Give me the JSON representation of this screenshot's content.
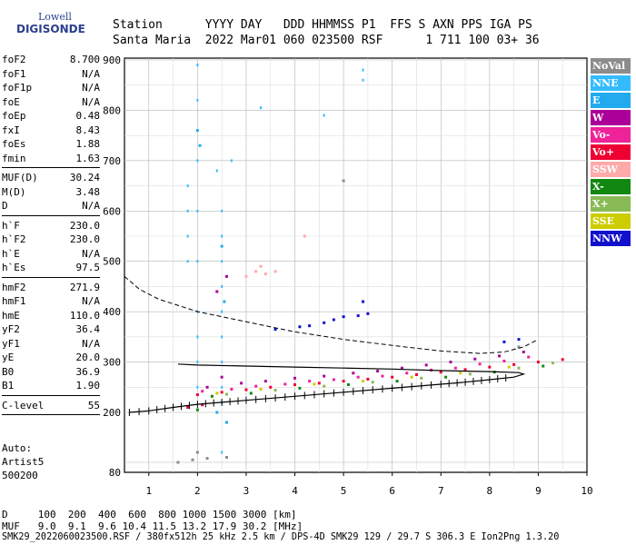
{
  "logo": {
    "line1": "Lowell",
    "line2": "DIGISONDE"
  },
  "header": {
    "line1": "Station      YYYY DAY   DDD HHMMSS P1  FFS S AXN PPS IGA PS",
    "line2": "Santa Maria  2022 Mar01 060 023500 RSF      1 711 100 03+ 36"
  },
  "params": [
    {
      "label": "foF2",
      "value": "8.700"
    },
    {
      "label": "foF1",
      "value": "N/A"
    },
    {
      "label": "foF1p",
      "value": "N/A"
    },
    {
      "label": "foE",
      "value": "N/A"
    },
    {
      "label": "foEp",
      "value": "0.48"
    },
    {
      "label": "fxI",
      "value": "8.43"
    },
    {
      "label": "foEs",
      "value": "1.88"
    },
    {
      "label": "fmin",
      "value": "1.63"
    },
    {
      "sep": true
    },
    {
      "label": "MUF(D)",
      "value": "30.24"
    },
    {
      "label": "M(D)",
      "value": "3.48"
    },
    {
      "label": "D",
      "value": "N/A"
    },
    {
      "sep": true
    },
    {
      "label": "h`F",
      "value": "230.0"
    },
    {
      "label": "h`F2",
      "value": "230.0"
    },
    {
      "label": "h`E",
      "value": "N/A"
    },
    {
      "label": "h`Es",
      "value": "97.5"
    },
    {
      "sep": true
    },
    {
      "label": "hmF2",
      "value": "271.9"
    },
    {
      "label": "hmF1",
      "value": "N/A"
    },
    {
      "label": "hmE",
      "value": "110.0"
    },
    {
      "label": "yF2",
      "value": "36.4"
    },
    {
      "label": "yF1",
      "value": "N/A"
    },
    {
      "label": "yE",
      "value": "20.0"
    },
    {
      "label": "B0",
      "value": "36.9"
    },
    {
      "label": "B1",
      "value": "1.90"
    },
    {
      "sep": true
    },
    {
      "label": "C-level",
      "value": "55"
    },
    {
      "sep": true
    }
  ],
  "auto": {
    "line1": "Auto:",
    "line2": "Artist5",
    "line3": "500200"
  },
  "legend": [
    {
      "label": "NoVal",
      "color": "#8c8c8c"
    },
    {
      "label": "NNE",
      "color": "#33bbff"
    },
    {
      "label": "E",
      "color": "#22aaee"
    },
    {
      "label": "W",
      "color": "#aa0099"
    },
    {
      "label": "Vo-",
      "color": "#ee2299"
    },
    {
      "label": "Vo+",
      "color": "#ee0033"
    },
    {
      "label": "SSW",
      "color": "#ffaaaa"
    },
    {
      "label": "X-",
      "color": "#118811"
    },
    {
      "label": "X+",
      "color": "#88bb55"
    },
    {
      "label": "SSE",
      "color": "#cccc00"
    },
    {
      "label": "NNW",
      "color": "#1111cc"
    }
  ],
  "footer": {
    "line1": "D     100  200  400  600  800 1000 1500 3000 [km]",
    "line2": "MUF   9.0  9.1  9.6 10.4 11.5 13.2 17.9 30.2 [MHz]",
    "line3": "SMK29_2022060023500.RSF / 380fx512h 25 kHz 2.5 km / DPS-4D SMK29 129 / 29.7 S 306.3 E Ion2Png 1.3.20"
  },
  "chart_data": {
    "type": "scatter",
    "xlim": [
      0.5,
      10
    ],
    "ylim": [
      80,
      900
    ],
    "xticks": [
      "1",
      "2",
      "3",
      "4",
      "5",
      "6",
      "7",
      "8",
      "9",
      "10"
    ],
    "yticks": [
      "80",
      "200",
      "300",
      "400",
      "500",
      "600",
      "700",
      "800",
      "900"
    ],
    "grid": true,
    "virtual_height_trace": [
      [
        0.6,
        200
      ],
      [
        1.0,
        203
      ],
      [
        1.5,
        210
      ],
      [
        2.0,
        216
      ],
      [
        2.5,
        220
      ],
      [
        3.0,
        224
      ],
      [
        4.0,
        232
      ],
      [
        5.0,
        240
      ],
      [
        6.0,
        248
      ],
      [
        7.0,
        256
      ],
      [
        7.5,
        260
      ],
      [
        8.0,
        265
      ],
      [
        8.5,
        270
      ],
      [
        8.7,
        276
      ],
      [
        8.6,
        279
      ],
      [
        8.0,
        281
      ],
      [
        7.0,
        283
      ],
      [
        6.0,
        286
      ],
      [
        5.0,
        288
      ],
      [
        4.0,
        290
      ],
      [
        3.0,
        292
      ],
      [
        2.0,
        294
      ],
      [
        1.6,
        296
      ]
    ],
    "x_trace_dashed": [
      [
        0.5,
        470
      ],
      [
        0.8,
        445
      ],
      [
        1.2,
        425
      ],
      [
        2.0,
        400
      ],
      [
        3.0,
        380
      ],
      [
        4.0,
        360
      ],
      [
        5.0,
        345
      ],
      [
        6.0,
        333
      ],
      [
        7.0,
        322
      ],
      [
        7.8,
        317
      ],
      [
        8.3,
        320
      ],
      [
        8.7,
        330
      ],
      [
        9.0,
        345
      ]
    ],
    "series": [
      {
        "name": "Vo+",
        "points": [
          [
            2.0,
            235
          ],
          [
            2.5,
            240
          ],
          [
            3.0,
            245
          ],
          [
            3.5,
            250
          ],
          [
            4.0,
            255
          ],
          [
            4.5,
            258
          ],
          [
            5.0,
            262
          ],
          [
            5.5,
            266
          ],
          [
            6.0,
            270
          ],
          [
            6.5,
            275
          ],
          [
            7.0,
            280
          ],
          [
            7.5,
            285
          ],
          [
            8.0,
            290
          ],
          [
            8.5,
            295
          ],
          [
            9.0,
            300
          ],
          [
            9.5,
            305
          ],
          [
            1.8,
            210
          ],
          [
            2.1,
            215
          ]
        ]
      },
      {
        "name": "Vo-",
        "points": [
          [
            2.1,
            242
          ],
          [
            2.7,
            246
          ],
          [
            3.2,
            252
          ],
          [
            3.8,
            256
          ],
          [
            4.3,
            262
          ],
          [
            4.8,
            265
          ],
          [
            5.3,
            270
          ],
          [
            5.8,
            272
          ],
          [
            6.3,
            278
          ],
          [
            6.8,
            284
          ],
          [
            7.3,
            288
          ],
          [
            7.8,
            296
          ],
          [
            8.3,
            302
          ],
          [
            8.8,
            310
          ]
        ]
      },
      {
        "name": "W",
        "points": [
          [
            2.2,
            250
          ],
          [
            2.9,
            258
          ],
          [
            3.4,
            262
          ],
          [
            4.0,
            268
          ],
          [
            4.6,
            272
          ],
          [
            5.2,
            278
          ],
          [
            5.7,
            282
          ],
          [
            6.2,
            288
          ],
          [
            6.7,
            294
          ],
          [
            7.2,
            300
          ],
          [
            7.7,
            306
          ],
          [
            8.2,
            312
          ],
          [
            8.7,
            320
          ],
          [
            2.5,
            270
          ],
          [
            2.6,
            470
          ],
          [
            2.4,
            440
          ]
        ]
      },
      {
        "name": "NNW",
        "points": [
          [
            4.1,
            370
          ],
          [
            4.3,
            372
          ],
          [
            4.6,
            378
          ],
          [
            4.8,
            384
          ],
          [
            5.0,
            390
          ],
          [
            5.3,
            392
          ],
          [
            5.5,
            396
          ],
          [
            3.6,
            365
          ],
          [
            8.3,
            340
          ],
          [
            8.6,
            345
          ],
          [
            5.4,
            420
          ]
        ]
      },
      {
        "name": "X-",
        "points": [
          [
            2.3,
            232
          ],
          [
            3.1,
            238
          ],
          [
            4.1,
            248
          ],
          [
            5.1,
            255
          ],
          [
            6.1,
            262
          ],
          [
            7.1,
            270
          ],
          [
            8.1,
            280
          ],
          [
            9.1,
            292
          ],
          [
            2.0,
            205
          ]
        ]
      },
      {
        "name": "X+",
        "points": [
          [
            2.6,
            236
          ],
          [
            3.6,
            244
          ],
          [
            4.6,
            252
          ],
          [
            5.6,
            260
          ],
          [
            6.6,
            268
          ],
          [
            7.6,
            276
          ],
          [
            8.6,
            288
          ],
          [
            9.3,
            298
          ]
        ]
      },
      {
        "name": "SSE",
        "points": [
          [
            2.4,
            238
          ],
          [
            3.3,
            246
          ],
          [
            4.4,
            256
          ],
          [
            5.4,
            262
          ],
          [
            6.4,
            270
          ],
          [
            7.4,
            278
          ],
          [
            8.4,
            290
          ]
        ]
      },
      {
        "name": "SSW",
        "points": [
          [
            3.0,
            470
          ],
          [
            3.2,
            480
          ],
          [
            3.4,
            475
          ],
          [
            3.3,
            490
          ],
          [
            3.6,
            480
          ],
          [
            4.2,
            550
          ]
        ]
      },
      {
        "name": "NNE",
        "points": [
          [
            1.8,
            650
          ],
          [
            1.8,
            600
          ],
          [
            1.8,
            550
          ],
          [
            1.8,
            500
          ],
          [
            2.0,
            890
          ],
          [
            2.0,
            820
          ],
          [
            2.0,
            700
          ],
          [
            2.0,
            600
          ],
          [
            2.0,
            500
          ],
          [
            2.0,
            400
          ],
          [
            2.0,
            350
          ],
          [
            2.0,
            300
          ],
          [
            2.0,
            250
          ],
          [
            2.5,
            600
          ],
          [
            2.5,
            550
          ],
          [
            2.5,
            500
          ],
          [
            2.5,
            450
          ],
          [
            2.5,
            400
          ],
          [
            2.5,
            350
          ],
          [
            2.5,
            300
          ],
          [
            2.5,
            250
          ],
          [
            2.5,
            220
          ],
          [
            2.4,
            680
          ],
          [
            2.7,
            700
          ],
          [
            4.6,
            790
          ],
          [
            5.4,
            880
          ],
          [
            5.4,
            860
          ],
          [
            3.3,
            805
          ],
          [
            2.5,
            120
          ]
        ]
      },
      {
        "name": "E",
        "points": [
          [
            2.0,
            760
          ],
          [
            2.05,
            730
          ],
          [
            2.5,
            530
          ],
          [
            2.55,
            420
          ],
          [
            2.4,
            200
          ],
          [
            2.6,
            180
          ]
        ]
      },
      {
        "name": "NoVal",
        "points": [
          [
            1.6,
            100
          ],
          [
            1.9,
            105
          ],
          [
            2.2,
            108
          ],
          [
            2.6,
            110
          ],
          [
            2.0,
            120
          ],
          [
            5.0,
            660
          ],
          [
            8.6,
            330
          ]
        ]
      }
    ]
  }
}
